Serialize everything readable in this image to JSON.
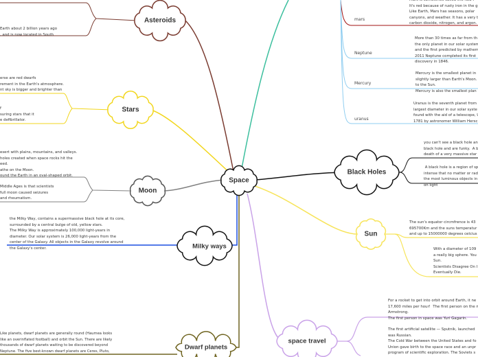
{
  "central_topic": "Space",
  "colors": {
    "asteroids": "#7a3b30",
    "stars": "#f2d61c",
    "moon": "#808080",
    "milky_ways": "#1a4fe0",
    "dwarf_planets": "#6f6420",
    "planets": "#3cbf9e",
    "planet_branches": "#8fcdf0",
    "mars": "#a01010",
    "black_holes": "#111111",
    "sun": "#f7e45a",
    "space_travel": "#c9a2e8"
  },
  "topics": {
    "asteroids": {
      "label": "Asteroids",
      "notes": [
        "Earth about 2 billion years ago\n, and is now located in South"
      ]
    },
    "stars": {
      "label": "Stars",
      "notes": [
        "erse are red dwarfs\nrement in the Earth's atmosphere.\nnt sky is bigger and brighter than",
        "f\nsuring stars that it\ne defibrillator."
      ]
    },
    "moon": {
      "label": "Moon",
      "notes": [
        "esert with plains, mountains, and valleys.\nholes created when space rocks hit the\need.\nathe on the Moon.\nound the Earth in an oval-shaped orbit.",
        "Middle Ages is that scientists\nfull moon caused seizures\nand rheumatism."
      ]
    },
    "milky_ways": {
      "label": "Milky ways",
      "notes": [
        "the Milky Way, contains a supermassive black hole at its core,\nsurrounded by a central bulge of old, yellow stars.\nThe Milky Way is approximately 100,000 light-years in\ndiameter. Our solar system is 26,000 light-years from the\ncenter of the Galaxy. All objects in the Galaxy revolve around\nthe Galaxy's center."
      ]
    },
    "dwarf_planets": {
      "label": "Dwarf planets",
      "notes": [
        "Like planets, dwarf planets are generally round (Haumea looks\nlike an overinflated football) and orbit the Sun. There are likely\nthousands of dwarf planets waiting to be discovered beyond\nNeptune. The five best-known dwarf planets are Ceres, Pluto,"
      ]
    },
    "planets": {
      "branches": [
        {
          "label": "mars",
          "note": "Mars is sometimes called the Red P\nIt's red because of rusty iron in the g\nLike Earth, Mars has seasons, polar\ncanyons, and weather. It has a very t\ncarbon dioxide, nitrogen, and argon."
        },
        {
          "label": "Neptune",
          "note": "More than 30 times as far from th\nthe only planet in our solar system\nand the first predicted by mathem\n2011 Neptune completed its first\ndiscovery in 1846."
        },
        {
          "label": "Mercury",
          "note": "Mercury is the smallest planet in\nslightly larger than Earth's Moon.\nto the Sun.\nMercury is also the smallest plan"
        },
        {
          "label": "uranus",
          "note": "Uranus is the seventh planet from\nlargest diameter in our solar syste\nfound with the aid of a telescope, U\n1781 by astronomer William Hersc"
        }
      ]
    },
    "black_holes": {
      "label": "Black Holes",
      "notes": [
        "you can't see a black hole an\nblack hole and are funky.  A b\ndeath of a very massive star",
        " A black hole is a region of sp\nintense that no matter or rad\nthe most luminous objects in\non light"
      ]
    },
    "sun": {
      "label": "Sun",
      "notes": [
        "The sun's equator circmfrence is 43\n695700Km and the suns temperatur\nand up to 15000000 degrees celcius",
        "With a diameter of 109\na really big sphere. You\nSun.\nScientists Disagree On I\nEventually Die."
      ]
    },
    "space_travel": {
      "label": "space travel",
      "notes": [
        "For a rocket to get into orbit around Earth, it ne\n17,600 miles per hour!  The first person on the m\nArmstrong.\nThe first person in space was Yuri Gagarin.",
        "The first artificial satellite — Sputnik, launched\nwas Russian.\nThe Cold War between the United States and fo\nUnion gave birth to the space race and an unpr\nprogram of scientific exploration. The Soviets s"
      ]
    }
  }
}
